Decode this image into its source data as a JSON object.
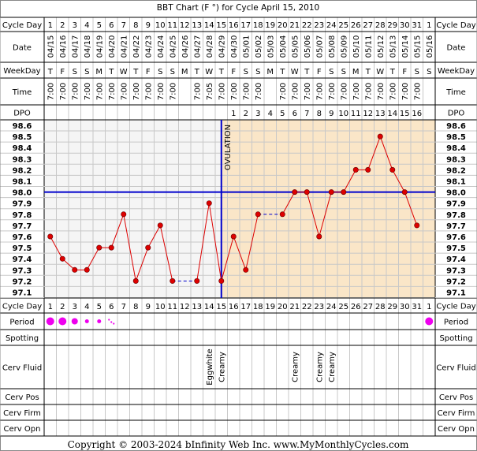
{
  "title": "BBT Chart (F °) for Cycle April 15, 2010",
  "copyright": "Copyright © 2003-2024 bInfinity Web Inc.     www.MyMonthlyCycles.com",
  "row_labels": {
    "cycle_day": "Cycle Day",
    "date": "Date",
    "weekday": "WeekDay",
    "time": "Time",
    "dpo": "DPO",
    "period": "Period",
    "spotting": "Spotting",
    "cerv_fluid": "Cerv Fluid",
    "cerv_pos": "Cerv Pos",
    "cerv_firm": "Cerv Firm",
    "cerv_opn": "Cerv Opn"
  },
  "ovulation_label": "OVULATION",
  "colors": {
    "line": "#dd0000",
    "coverline": "#0000cc",
    "ovulation": "#0000cc",
    "post_ovulation_bg": "#fae6c8",
    "pre_ovulation_bg": "#f5f5f5",
    "grid": "#c8c8c8",
    "period_dot": "#ee00ee",
    "panel": "#e8e8e8"
  },
  "chart_data": {
    "type": "line",
    "title": "BBT Chart (F °) for Cycle April 15, 2010",
    "cycle_days": [
      "1",
      "2",
      "3",
      "4",
      "5",
      "6",
      "7",
      "8",
      "9",
      "10",
      "11",
      "12",
      "13",
      "14",
      "15",
      "16",
      "17",
      "18",
      "19",
      "20",
      "21",
      "22",
      "23",
      "24",
      "25",
      "26",
      "27",
      "28",
      "29",
      "30",
      "31",
      "1"
    ],
    "dates": [
      "04/15",
      "04/16",
      "04/17",
      "04/18",
      "04/19",
      "04/20",
      "04/21",
      "04/22",
      "04/23",
      "04/24",
      "04/25",
      "04/26",
      "04/27",
      "04/28",
      "04/29",
      "04/30",
      "05/01",
      "05/02",
      "05/03",
      "05/04",
      "05/05",
      "05/06",
      "05/07",
      "05/08",
      "05/09",
      "05/10",
      "05/11",
      "05/12",
      "05/13",
      "05/14",
      "05/15",
      "05/16"
    ],
    "weekdays": [
      "T",
      "F",
      "S",
      "S",
      "M",
      "T",
      "W",
      "T",
      "F",
      "S",
      "S",
      "M",
      "T",
      "W",
      "T",
      "F",
      "S",
      "S",
      "M",
      "T",
      "W",
      "T",
      "F",
      "S",
      "S",
      "M",
      "T",
      "W",
      "T",
      "F",
      "S",
      "S"
    ],
    "times": [
      "7:00",
      "7:00",
      "7:00",
      "7:00",
      "7:00",
      "7:00",
      "7:00",
      "7:00",
      "7:00",
      "7:00",
      "7:00",
      "",
      "7:00",
      "7:05",
      "7:00",
      "7:00",
      "7:00",
      "7:00",
      "",
      "7:00",
      "7:00",
      "7:00",
      "7:00",
      "7:00",
      "7:00",
      "7:00",
      "7:00",
      "7:00",
      "7:00",
      "7:00",
      "7:00",
      ""
    ],
    "dpo": [
      "",
      "",
      "",
      "",
      "",
      "",
      "",
      "",
      "",
      "",
      "",
      "",
      "",
      "",
      "",
      "1",
      "2",
      "3",
      "4",
      "5",
      "6",
      "7",
      "8",
      "9",
      "10",
      "11",
      "12",
      "13",
      "14",
      "15",
      "16",
      ""
    ],
    "temperatures": [
      97.6,
      97.4,
      97.3,
      97.3,
      97.5,
      97.5,
      97.8,
      97.2,
      97.5,
      97.7,
      97.2,
      null,
      97.2,
      97.9,
      97.2,
      97.6,
      97.3,
      97.8,
      null,
      97.8,
      98.0,
      98.0,
      97.6,
      98.0,
      98.0,
      98.2,
      98.2,
      98.5,
      98.2,
      98.0,
      97.7,
      null
    ],
    "y_ticks": [
      "98.6",
      "98.5",
      "98.4",
      "98.3",
      "98.2",
      "98.1",
      "98.0",
      "97.9",
      "97.8",
      "97.7",
      "97.6",
      "97.5",
      "97.4",
      "97.3",
      "97.2",
      "97.1"
    ],
    "ylim": [
      97.1,
      98.6
    ],
    "coverline": 98.0,
    "ovulation_after_day": 15,
    "period": [
      "large",
      "large",
      "medium",
      "small",
      "small",
      "spotting",
      "",
      "",
      "",
      "",
      "",
      "",
      "",
      "",
      "",
      "",
      "",
      "",
      "",
      "",
      "",
      "",
      "",
      "",
      "",
      "",
      "",
      "",
      "",
      "",
      "",
      "large"
    ],
    "cerv_fluid": [
      "",
      "",
      "",
      "",
      "",
      "",
      "",
      "",
      "",
      "",
      "",
      "",
      "",
      "Eggwhite",
      "Creamy",
      "",
      "",
      "",
      "",
      "",
      "Creamy",
      "",
      "Creamy",
      "Creamy",
      "",
      "",
      "",
      "",
      "",
      "",
      "",
      ""
    ]
  }
}
